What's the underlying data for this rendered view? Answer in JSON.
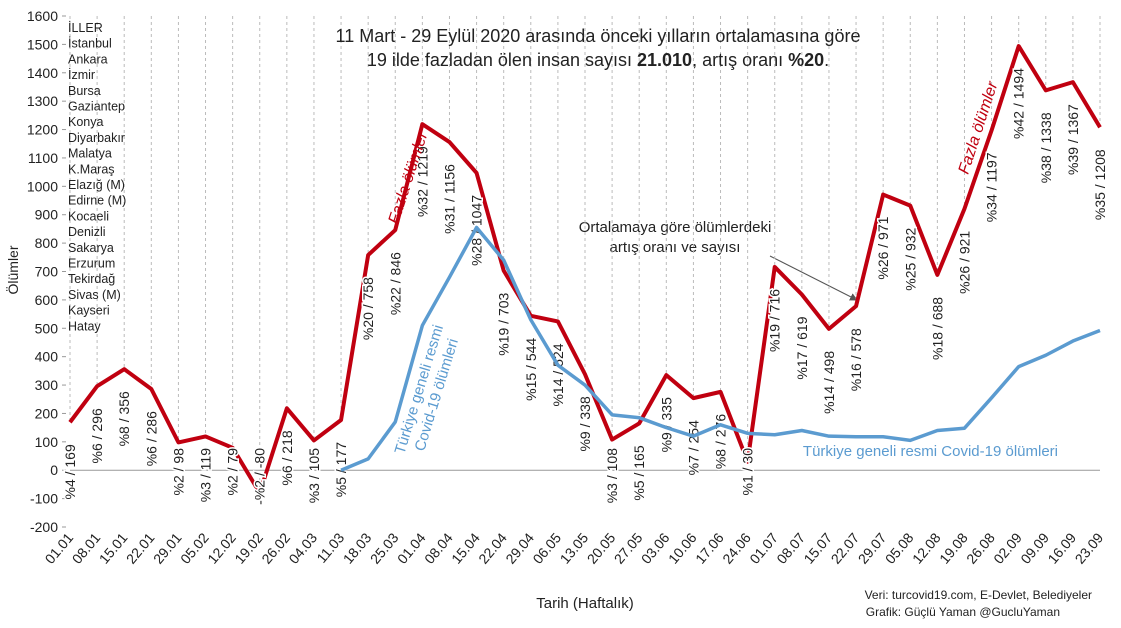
{
  "chart_data": {
    "type": "line",
    "title_lines": [
      [
        {
          "text": "11 Mart - 29 Eylül 2020 arasında önceki yılların ortalamasına göre",
          "bold": false
        }
      ],
      [
        {
          "text": "19 ilde fazladan ölen insan sayısı ",
          "bold": false
        },
        {
          "text": "21.010",
          "bold": true
        },
        {
          "text": ", artış oranı ",
          "bold": false
        },
        {
          "text": "%20",
          "bold": true
        },
        {
          "text": ".",
          "bold": false
        }
      ]
    ],
    "provinces": [
      "İLLER",
      "İstanbul",
      "Ankara",
      "İzmir",
      "Bursa",
      "Gaziantep",
      "Konya",
      "Diyarbakır",
      "Malatya",
      "K.Maraş",
      "Elazığ (M)",
      "Edirne (M)",
      "Kocaeli",
      "Denizli",
      "Sakarya",
      "Erzurum",
      "Tekirdağ",
      "Sivas (M)",
      "Kayseri",
      "Hatay"
    ],
    "y_label": "Ölümler",
    "x_label": "Tarih (Haftalık)",
    "annotations": {
      "ratio_line1": "Ortalamaya göre ölümlerdeki",
      "ratio_line2": "artış oranı ve sayısı",
      "covid_line1": "Türkiye geneli resmi",
      "covid_line2": "Covid-19 ölümleri"
    },
    "source_lines": [
      "Veri: turcovid19.com,  E-Devlet, Belediyeler",
      "Grafik: Güçlü Yaman @GucluYaman"
    ],
    "categories": [
      "01.01",
      "08.01",
      "15.01",
      "22.01",
      "29.01",
      "05.02",
      "12.02",
      "19.02",
      "26.02",
      "04.03",
      "11.03",
      "18.03",
      "25.03",
      "01.04",
      "08.04",
      "15.04",
      "22.04",
      "29.04",
      "06.05",
      "13.05",
      "20.05",
      "27.05",
      "03.06",
      "10.06",
      "17.06",
      "24.06",
      "01.07",
      "08.07",
      "15.07",
      "22.07",
      "29.07",
      "05.08",
      "12.08",
      "19.08",
      "26.08",
      "02.09",
      "09.09",
      "16.09",
      "23.09"
    ],
    "series": [
      {
        "name": "Fazla ölümler",
        "color": "#c00010",
        "values": [
          169,
          296,
          356,
          286,
          98,
          119,
          79,
          -80,
          218,
          105,
          177,
          758,
          846,
          1219,
          1156,
          1047,
          703,
          544,
          524,
          338,
          108,
          165,
          335,
          254,
          276,
          30,
          716,
          619,
          498,
          578,
          971,
          932,
          688,
          921,
          1197,
          1494,
          1338,
          1367,
          1208
        ],
        "value_labels": [
          "%4 / 169",
          "%6 / 296",
          "%8 / 356",
          "%6 / 286",
          "%2 / 98",
          "%3 / 119",
          "%2 / 79",
          "-%2 / -80",
          "%6 / 218",
          "%3 / 105",
          "%5 / 177",
          "%20 / 758",
          "%22 / 846",
          "%32 / 1219",
          "%31 / 1156",
          "%28 / 1047",
          "%19 / 703",
          "%15 / 544",
          "%14 / 524",
          "%9 / 338",
          "%3 / 108",
          "%5 / 165",
          "%9 / 335",
          "%7 / 254",
          "%8 / 276",
          "%1 / 30",
          "%19 / 716",
          "%17 / 619",
          "%14 / 498",
          "%16 / 578",
          "%26 / 971",
          "%25 / 932",
          "%18 / 688",
          "%26 / 921",
          "%34 / 1197",
          "%42 / 1494",
          "%38 / 1338",
          "%39 / 1367",
          "%35 / 1208"
        ]
      },
      {
        "name": "Türkiye geneli resmi Covid-19 ölümleri",
        "color": "#5b9bd0",
        "values": [
          null,
          null,
          null,
          null,
          null,
          null,
          null,
          null,
          null,
          null,
          0,
          40,
          170,
          510,
          680,
          855,
          740,
          530,
          370,
          300,
          195,
          185,
          150,
          120,
          160,
          130,
          125,
          140,
          120,
          118,
          118,
          105,
          140,
          148,
          255,
          365,
          405,
          455,
          492
        ]
      }
    ],
    "ylim": [
      -200,
      1600
    ],
    "yticks": [
      -200,
      -100,
      0,
      100,
      200,
      300,
      400,
      500,
      600,
      700,
      800,
      900,
      1000,
      1100,
      1200,
      1300,
      1400,
      1500,
      1600
    ],
    "grid": true
  }
}
